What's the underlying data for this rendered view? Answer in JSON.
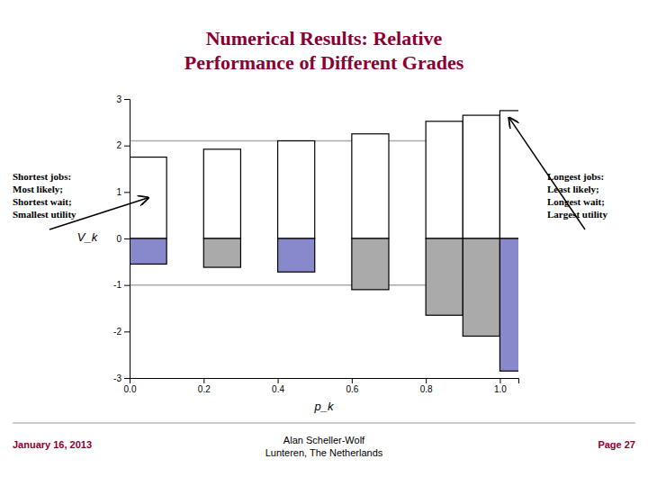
{
  "chart_data": {
    "type": "bar",
    "title": "Numerical Results: Relative\nPerformance of Different Grades",
    "title_color": "#8B0032",
    "xlabel": "p_k",
    "ylabel": "V_k",
    "x": [
      0,
      0.2,
      0.4,
      0.6,
      0.8,
      0.9,
      1.0
    ],
    "series": [
      {
        "color": "white",
        "values": [
          1.75,
          1.92,
          2.1,
          2.25,
          2.52,
          2.65,
          2.75
        ]
      },
      {
        "colors": [
          "#8888cc",
          "#aaaaaa",
          "#8888cc",
          "#aaaaaa",
          "#aaaaaa",
          "#aaaaaa",
          "#8888cc"
        ],
        "values": [
          -0.55,
          -0.62,
          -0.72,
          -1.1,
          -1.65,
          -2.1,
          -2.85
        ]
      }
    ],
    "xlim": [
      0,
      1.05
    ],
    "ylim": [
      -3,
      3
    ],
    "xticks": [
      {
        "value": 0,
        "label": "0.0"
      },
      0.2,
      0.4,
      0.6,
      0.8,
      {
        "value": 1.0,
        "label": "1.0"
      }
    ],
    "yticks": [
      -3,
      -2,
      -1,
      0,
      1,
      2,
      3
    ],
    "reference_lines": [
      {
        "value": 2.1,
        "color": "#aaaaaa"
      },
      {
        "value": -1.0,
        "color": "#aaaaaa"
      }
    ],
    "annotations": [
      "Shortest jobs:\nMost likely;\nShortest wait;\nSmallest utility",
      "Longest jobs:\nLeast likely;\nLongest wait;\nLargest utility"
    ],
    "footer": [
      "January 16, 2013",
      "Alan Scheller-Wolf\nLunteren, The Netherlands",
      "Page 27"
    ],
    "footer_color": "#8B0032",
    "grid": false
  }
}
